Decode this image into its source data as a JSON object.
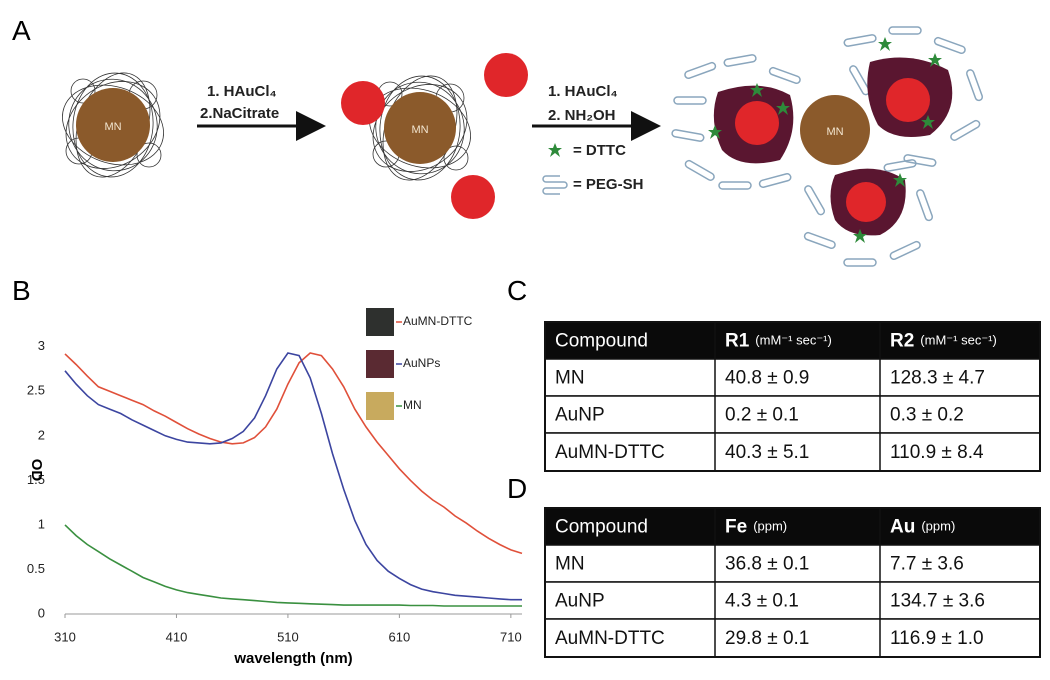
{
  "panel_a": {
    "label": "A",
    "core_label": "MN",
    "step1": [
      "1. HAuCl₄",
      "2.NaCitrate"
    ],
    "step2": [
      "1. HAuCl₄",
      "2. NH₂OH"
    ],
    "legend_dttc": "= DTTC",
    "legend_peg": "= PEG-SH"
  },
  "panel_b": {
    "label": "B"
  },
  "chart_data": {
    "type": "line",
    "xlabel": "wavelength (nm)",
    "ylabel": "OD",
    "x": [
      310,
      320,
      330,
      340,
      350,
      360,
      370,
      380,
      390,
      400,
      410,
      420,
      430,
      440,
      450,
      460,
      470,
      480,
      490,
      500,
      510,
      520,
      530,
      540,
      550,
      560,
      570,
      580,
      590,
      600,
      610,
      620,
      630,
      640,
      650,
      660,
      670,
      680,
      690,
      700,
      710,
      720
    ],
    "series": [
      {
        "name": "AuMN-DTTC",
        "color": "#e0503a",
        "swatch": "#2e302e",
        "values": [
          2.92,
          2.8,
          2.67,
          2.55,
          2.5,
          2.45,
          2.4,
          2.35,
          2.28,
          2.22,
          2.15,
          2.08,
          2.02,
          1.97,
          1.93,
          1.91,
          1.92,
          1.98,
          2.1,
          2.3,
          2.58,
          2.82,
          2.93,
          2.9,
          2.75,
          2.55,
          2.3,
          2.1,
          1.93,
          1.78,
          1.63,
          1.5,
          1.38,
          1.28,
          1.2,
          1.1,
          1.02,
          0.93,
          0.85,
          0.78,
          0.72,
          0.68
        ]
      },
      {
        "name": "AuNPs",
        "color": "#3c45a0",
        "swatch": "#5a2a32",
        "values": [
          2.73,
          2.58,
          2.45,
          2.35,
          2.3,
          2.25,
          2.18,
          2.12,
          2.06,
          2.0,
          1.96,
          1.93,
          1.92,
          1.91,
          1.92,
          1.97,
          2.05,
          2.2,
          2.45,
          2.75,
          2.93,
          2.9,
          2.65,
          2.25,
          1.8,
          1.4,
          1.05,
          0.78,
          0.6,
          0.48,
          0.4,
          0.33,
          0.28,
          0.25,
          0.23,
          0.21,
          0.2,
          0.19,
          0.18,
          0.17,
          0.16,
          0.16
        ]
      },
      {
        "name": "MN",
        "color": "#3a9040",
        "swatch": "#c8aa5e",
        "values": [
          1.0,
          0.88,
          0.78,
          0.7,
          0.62,
          0.55,
          0.48,
          0.41,
          0.36,
          0.31,
          0.27,
          0.24,
          0.22,
          0.2,
          0.18,
          0.17,
          0.16,
          0.15,
          0.14,
          0.13,
          0.125,
          0.12,
          0.115,
          0.11,
          0.105,
          0.1,
          0.1,
          0.1,
          0.1,
          0.1,
          0.1,
          0.095,
          0.095,
          0.095,
          0.09,
          0.09,
          0.09,
          0.09,
          0.09,
          0.09,
          0.09,
          0.09
        ]
      }
    ],
    "xlim": [
      310,
      720
    ],
    "ylim": [
      0,
      3.3
    ],
    "xticks": [
      310,
      410,
      510,
      610,
      710
    ],
    "yticks": [
      0,
      0.5,
      1,
      1.5,
      2,
      2.5,
      3
    ],
    "grid": false,
    "legend": "upper right"
  },
  "table_c": {
    "label": "C",
    "header": [
      {
        "text": "Compound"
      },
      {
        "text": "R1",
        "unit": "(mM⁻¹ sec⁻¹)"
      },
      {
        "text": "R2",
        "unit": "(mM⁻¹ sec⁻¹)"
      }
    ],
    "rows": [
      [
        "MN",
        "40.8 ± 0.9",
        "128.3 ± 4.7"
      ],
      [
        "AuNP",
        "0.2 ± 0.1",
        "0.3 ± 0.2"
      ],
      [
        "AuMN-DTTC",
        "40.3 ± 5.1",
        "110.9 ± 8.4"
      ]
    ]
  },
  "table_d": {
    "label": "D",
    "header": [
      {
        "text": "Compound"
      },
      {
        "text": "Fe",
        "unit": "(ppm)"
      },
      {
        "text": "Au",
        "unit": "(ppm)"
      }
    ],
    "rows": [
      [
        "MN",
        "36.8 ± 0.1",
        "7.7 ± 3.6"
      ],
      [
        "AuNP",
        "4.3 ± 0.1",
        "134.7 ± 3.6"
      ],
      [
        "AuMN-DTTC",
        "29.8 ± 0.1",
        "116.9 ± 1.0"
      ]
    ]
  }
}
